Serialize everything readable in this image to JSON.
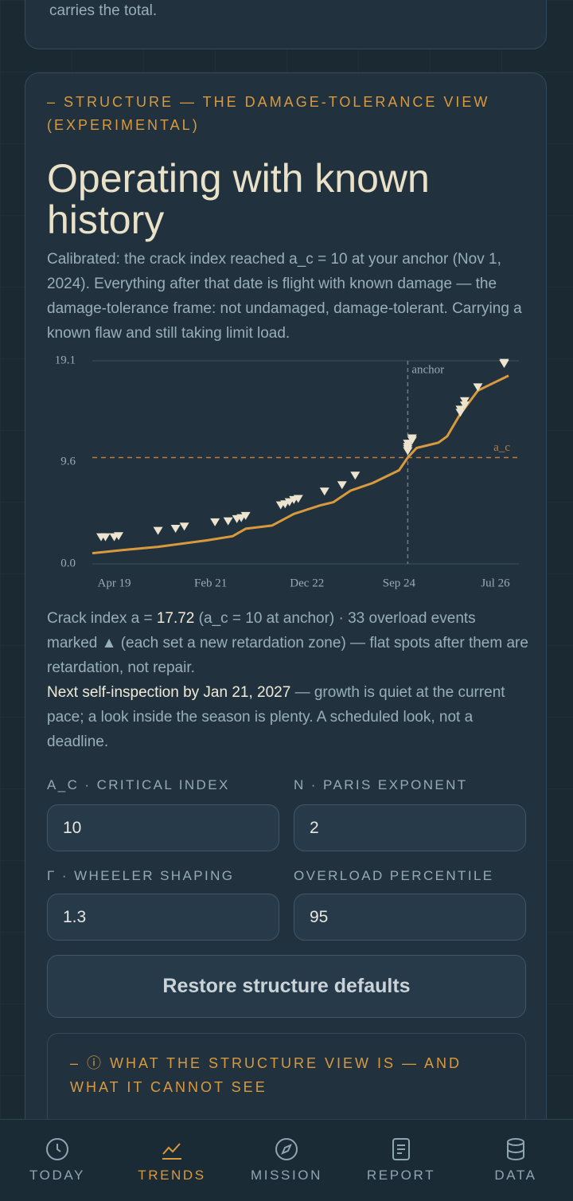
{
  "top_card": {
    "text": "carries the total."
  },
  "section": {
    "heading": "– STRUCTURE — THE DAMAGE-TOLERANCE VIEW (EXPERIMENTAL)",
    "title": "Operating with known history",
    "description": "Calibrated: the crack index reached a_c = 10 at your anchor (Nov 1, 2024). Everything after that date is flight with known damage — the damage-tolerance frame: not undamaged, damage-tolerant. Carrying a known flaw and still taking limit load.",
    "stats": {
      "prefix": "Crack index a = ",
      "value": 17.72,
      "suffix": " (a_c = 10 at anchor) · 33 overload events marked ▲ (each set a new retardation zone) — flat spots after them are retardation, not repair."
    },
    "inspection": {
      "highlight": "Next self-inspection by Jan 21, 2027",
      "rest": " — growth is quiet at the current pace; a look inside the season is plenty. A scheduled look, not a deadline."
    },
    "fields": [
      {
        "label": "A_C · CRITICAL INDEX",
        "value": 10
      },
      {
        "label": "N · PARIS EXPONENT",
        "value": 2
      },
      {
        "label": "Γ · WHEELER SHAPING",
        "value": 1.3
      },
      {
        "label": "OVERLOAD PERCENTILE",
        "value": 95
      }
    ],
    "button": "Restore structure defaults",
    "details": "– ⓘ WHAT THE STRUCTURE VIEW IS — AND WHAT IT CANNOT SEE"
  },
  "chart_data": {
    "type": "line",
    "x": [
      "2018-11",
      "2019-06",
      "2020-02",
      "2021-01",
      "2021-07",
      "2021-10",
      "2022-04",
      "2022-09",
      "2023-03",
      "2023-06",
      "2023-10",
      "2024-03",
      "2024-09",
      "2024-11",
      "2025-01",
      "2025-06",
      "2025-08",
      "2025-11",
      "2026-03",
      "2026-07",
      "2026-10"
    ],
    "values": [
      1.0,
      1.3,
      1.6,
      2.2,
      2.6,
      3.3,
      3.6,
      4.7,
      5.5,
      5.8,
      6.9,
      7.6,
      8.8,
      10.0,
      10.9,
      11.4,
      12.0,
      14.1,
      16.3,
      17.1,
      17.7
    ],
    "color": "#d99a3e",
    "overloads": {
      "x": [
        "2019-01",
        "2019-02",
        "2019-04",
        "2019-05",
        "2020-02",
        "2020-06",
        "2020-08",
        "2021-03",
        "2021-06",
        "2021-08",
        "2021-09",
        "2021-10",
        "2022-06",
        "2022-07",
        "2022-08",
        "2022-09",
        "2022-10",
        "2023-04",
        "2023-08",
        "2023-11",
        "2024-11",
        "2024-11",
        "2024-11",
        "2024-11",
        "2024-12",
        "2024-12",
        "2025-11",
        "2025-11",
        "2025-12",
        "2025-12",
        "2026-03",
        "2026-09",
        "2026-09"
      ],
      "values": [
        2.5,
        2.5,
        2.5,
        2.6,
        3.1,
        3.3,
        3.5,
        3.9,
        4.0,
        4.2,
        4.3,
        4.5,
        5.5,
        5.6,
        5.8,
        6.0,
        6.1,
        6.8,
        7.4,
        8.3,
        10.6,
        10.8,
        11.0,
        11.3,
        11.6,
        11.8,
        14.2,
        14.5,
        14.9,
        15.3,
        16.6,
        18.9,
        18.8
      ],
      "color": "#ece4cf"
    },
    "anchor": {
      "label": "anchor",
      "x": "2024-11"
    },
    "threshold": {
      "label": "a_c",
      "value": 10
    },
    "xlim": [
      "2018-11",
      "2026-12"
    ],
    "xticks": [
      {
        "value": "2019-04",
        "label": "Apr 19"
      },
      {
        "value": "2021-02",
        "label": "Feb 21"
      },
      {
        "value": "2022-12",
        "label": "Dec 22"
      },
      {
        "value": "2024-09",
        "label": "Sep 24"
      },
      {
        "value": "2026-07",
        "label": "Jul 26"
      }
    ],
    "ylim": [
      0,
      19.1
    ],
    "yticks": [
      {
        "value": 0,
        "label": "0.0"
      },
      9.6,
      19.1
    ]
  },
  "nav": [
    {
      "label": "TODAY",
      "active": false
    },
    {
      "label": "TRENDS",
      "active": true
    },
    {
      "label": "MISSION",
      "active": false
    },
    {
      "label": "REPORT",
      "active": false
    },
    {
      "label": "DATA",
      "active": false
    }
  ]
}
